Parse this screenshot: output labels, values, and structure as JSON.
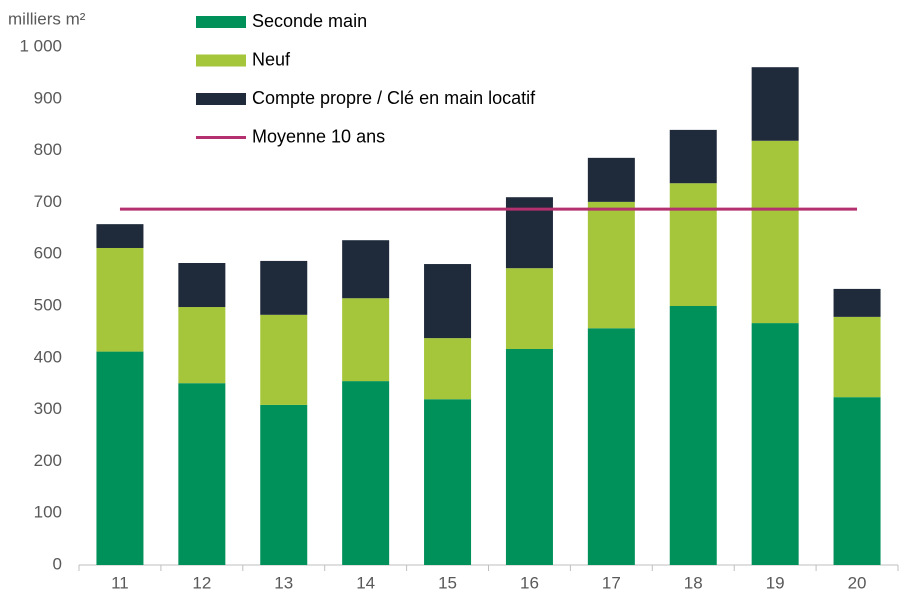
{
  "chart_data": {
    "type": "stacked_bar",
    "y_axis_label": "milliers m²",
    "categories": [
      "11",
      "12",
      "13",
      "14",
      "15",
      "16",
      "17",
      "18",
      "19",
      "20"
    ],
    "series": [
      {
        "name": "Seconde main",
        "color": "#00905a",
        "values": [
          412,
          351,
          309,
          355,
          320,
          417,
          457,
          500,
          467,
          324
        ]
      },
      {
        "name": "Neuf",
        "color": "#a5c63b",
        "values": [
          200,
          147,
          174,
          160,
          118,
          156,
          244,
          237,
          352,
          155
        ]
      },
      {
        "name": "Compte propre / Clé en main locatif",
        "color": "#1f2a3a",
        "values": [
          46,
          85,
          104,
          112,
          143,
          137,
          85,
          103,
          142,
          54
        ]
      },
      {
        "name": "Moyenne 10 ans",
        "color": "#b5306e",
        "type": "line",
        "values": [
          687,
          687,
          687,
          687,
          687,
          687,
          687,
          687,
          687,
          687
        ]
      }
    ],
    "ylim": [
      0,
      1000
    ],
    "yticks": [
      0,
      100,
      200,
      300,
      400,
      500,
      600,
      700,
      800,
      900,
      {
        "value": 1000,
        "label": "1 000"
      }
    ]
  }
}
